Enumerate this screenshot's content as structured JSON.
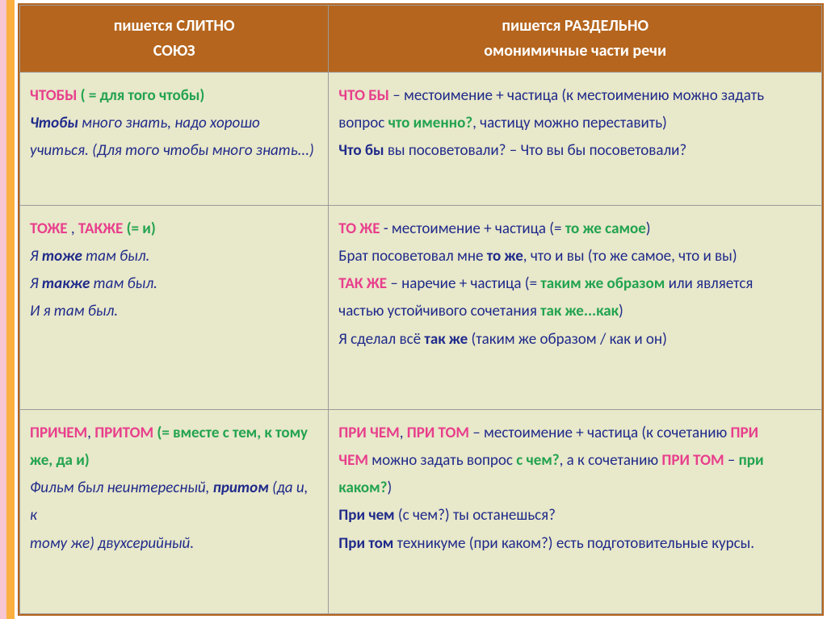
{
  "header": {
    "left_line1": "пишется СЛИТНО",
    "left_line2": "СОЮЗ",
    "right_line1": "пишется РАЗДЕЛЬНО",
    "right_line2": "омонимичные части речи"
  },
  "rows": [
    {
      "left": {
        "l1a": "ЧТОБЫ ",
        "l1b": "( = для того чтобы)",
        "l2a": "Чтобы ",
        "l2b": "много знать, надо хорошо",
        "l3": "учиться. (Для того чтобы много знать...)"
      },
      "right": {
        "r1a": "ЧТО БЫ ",
        "r1b": "– местоимение + частица (к местоимению можно задать",
        "r2a": "вопрос ",
        "r2b": "что именно?",
        "r2c": ", частицу можно переставить)",
        "r3a": "Что бы ",
        "r3b": "вы посоветовали? – Что вы бы посоветовали?"
      }
    },
    {
      "left": {
        "l1a": "ТОЖЕ ",
        "l1b": ", ",
        "l1c": "ТАКЖЕ ",
        "l1d": "(= и)",
        "l2a": "Я ",
        "l2b": "тоже ",
        "l2c": "там был.",
        "l3a": "Я ",
        "l3b": "также ",
        "l3c": "там был.",
        "l4": "И я там был."
      },
      "right": {
        "r1a": "ТО ЖЕ ",
        "r1b": "-  местоимение + частица (= ",
        "r1c": "то же самое",
        "r1d": ")",
        "r2a": "Брат посоветовал мне ",
        "r2b": "то же",
        "r2c": ", что и вы (то же самое, что и вы)",
        "r3a": "ТАК ЖЕ ",
        "r3b": "– наречие + частица (= ",
        "r3c": "таким же образом ",
        "r3d": "или является",
        "r4a": "частью устойчивого сочетания ",
        "r4b": "так же...как",
        "r4c": ")",
        "r5a": "Я сделал всё ",
        "r5b": "так же ",
        "r5c": "(таким же образом / как и он)"
      }
    },
    {
      "left": {
        "l1a": "ПРИЧЕМ",
        "l1b": ", ",
        "l1c": "ПРИТОМ ",
        "l1d": "(= вместе с тем, к тому",
        "l2": "же, да и)",
        "l3a": "Фильм был неинтересный, ",
        "l3b": "притом ",
        "l3c": "(да и, к",
        "l4": "тому же) двухсерийный."
      },
      "right": {
        "r1a": "ПРИ ЧЕМ",
        "r1b": ", ",
        "r1c": "ПРИ ТОМ ",
        "r1d": "– местоимение + частица (к сочетанию ",
        "r1e": "ПРИ",
        "r2a": "ЧЕМ ",
        "r2b": "можно задать вопрос ",
        "r2c": "с чем?",
        "r2d": ", а к сочетанию ",
        "r2e": "ПРИ ТОМ ",
        "r2f": "– ",
        "r2g": "при",
        "r3a": "каком?",
        "r3b": ")",
        "r4a": "При чем ",
        "r4b": "(с чем?) ты останешься?",
        "r5a": "При том ",
        "r5b": "техникуме (при каком?) есть подготовительные курсы."
      }
    }
  ],
  "style": {
    "header_bg": "#b5651d",
    "header_fg": "#ffffff",
    "cell_bg": "#e8e8ca",
    "border": "#9c9c9c",
    "text_blue": "#1f2a8a",
    "text_pink": "#e83e8c",
    "text_green": "#22a34f",
    "font_size_header": 20,
    "font_size_cell": 19,
    "dims": [
      1024,
      767
    ],
    "col_widths_pct": [
      38.5,
      61.5
    ]
  }
}
